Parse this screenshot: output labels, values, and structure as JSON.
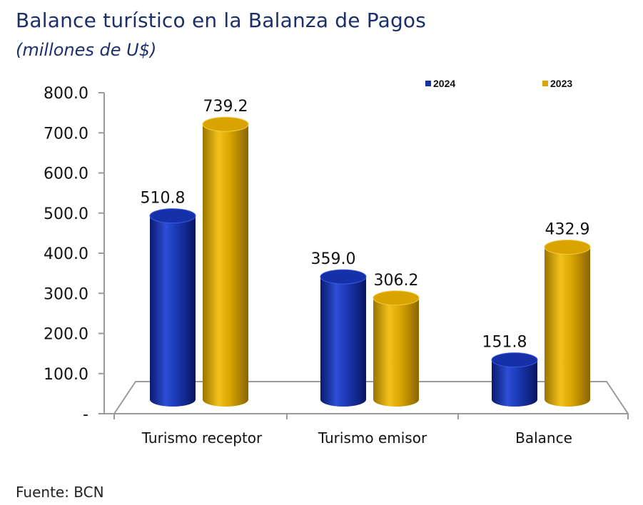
{
  "header": {
    "title": "Balance turístico en la Balanza de Pagos",
    "subtitle": "(millones de U$)"
  },
  "footer": {
    "source": "Fuente: BCN"
  },
  "colors": {
    "series_2024": "#1530a8",
    "series_2023": "#d9a400",
    "axis": "#9a9a9a"
  },
  "chart_data": {
    "type": "bar",
    "title": "Balance turístico en la Balanza de Pagos",
    "ylabel": "",
    "xlabel": "",
    "categories": [
      "Turismo receptor",
      "Turismo emisor",
      "Balance"
    ],
    "series": [
      {
        "name": "2024",
        "values": [
          510.8,
          359.0,
          151.8
        ],
        "labels": [
          "510.8",
          "359.0",
          "151.8"
        ]
      },
      {
        "name": "2023",
        "values": [
          739.2,
          306.2,
          432.9
        ],
        "labels": [
          "739.2",
          "306.2",
          "432.9"
        ]
      }
    ],
    "yticks": [
      "-",
      "100.0",
      "200.0",
      "300.0",
      "400.0",
      "500.0",
      "600.0",
      "700.0",
      "800.0"
    ],
    "ylim": [
      0,
      800
    ],
    "legend": "top-right",
    "grid": false,
    "style": "3d-cylinder"
  }
}
